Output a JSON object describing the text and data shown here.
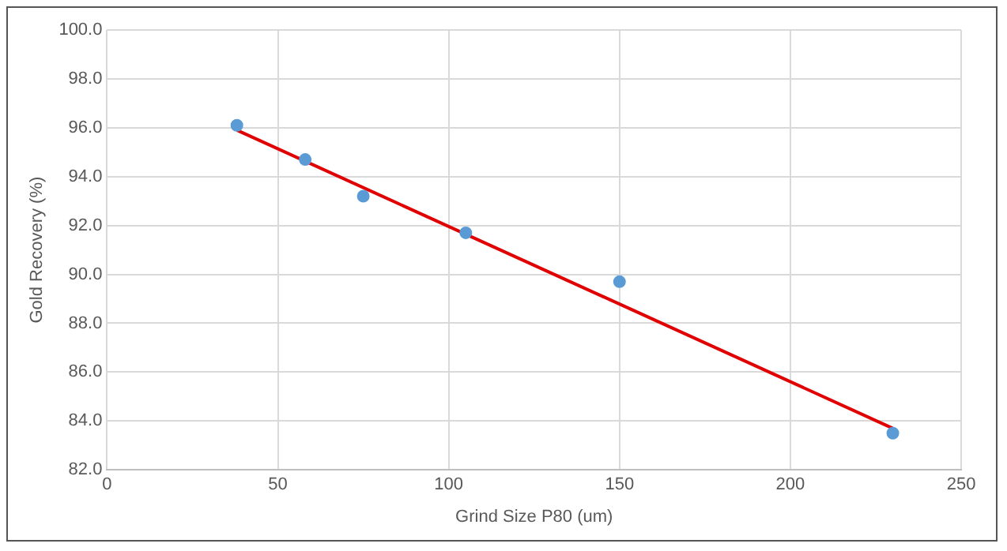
{
  "chart_data": {
    "type": "scatter",
    "xlabel": "Grind Size P80 (um)",
    "ylabel": "Gold Recovery (%)",
    "xlim": [
      0,
      250
    ],
    "xticks": [
      0,
      50,
      100,
      150,
      200,
      250
    ],
    "ylim": [
      82,
      100
    ],
    "yticks": [
      {
        "value": 82,
        "label": "82.0"
      },
      {
        "value": 84,
        "label": "84.0"
      },
      {
        "value": 86,
        "label": "86.0"
      },
      {
        "value": 88,
        "label": "88.0"
      },
      {
        "value": 90,
        "label": "90.0"
      },
      {
        "value": 92,
        "label": "92.0"
      },
      {
        "value": 94,
        "label": "94.0"
      },
      {
        "value": 96,
        "label": "96.0"
      },
      {
        "value": 98,
        "label": "98.0"
      },
      {
        "value": 100,
        "label": "100.0"
      }
    ],
    "grid": true,
    "legend": false,
    "marker": "circle",
    "series": [
      {
        "color": "#5b9bd5",
        "x": [
          38,
          58,
          75,
          105,
          150,
          230
        ],
        "values": [
          96.1,
          94.7,
          93.2,
          91.7,
          89.7,
          83.5
        ]
      },
      {
        "type": "line",
        "color": "#e00000",
        "x": [
          38,
          230
        ],
        "values": [
          95.9,
          83.7
        ],
        "marker": "none"
      }
    ]
  }
}
